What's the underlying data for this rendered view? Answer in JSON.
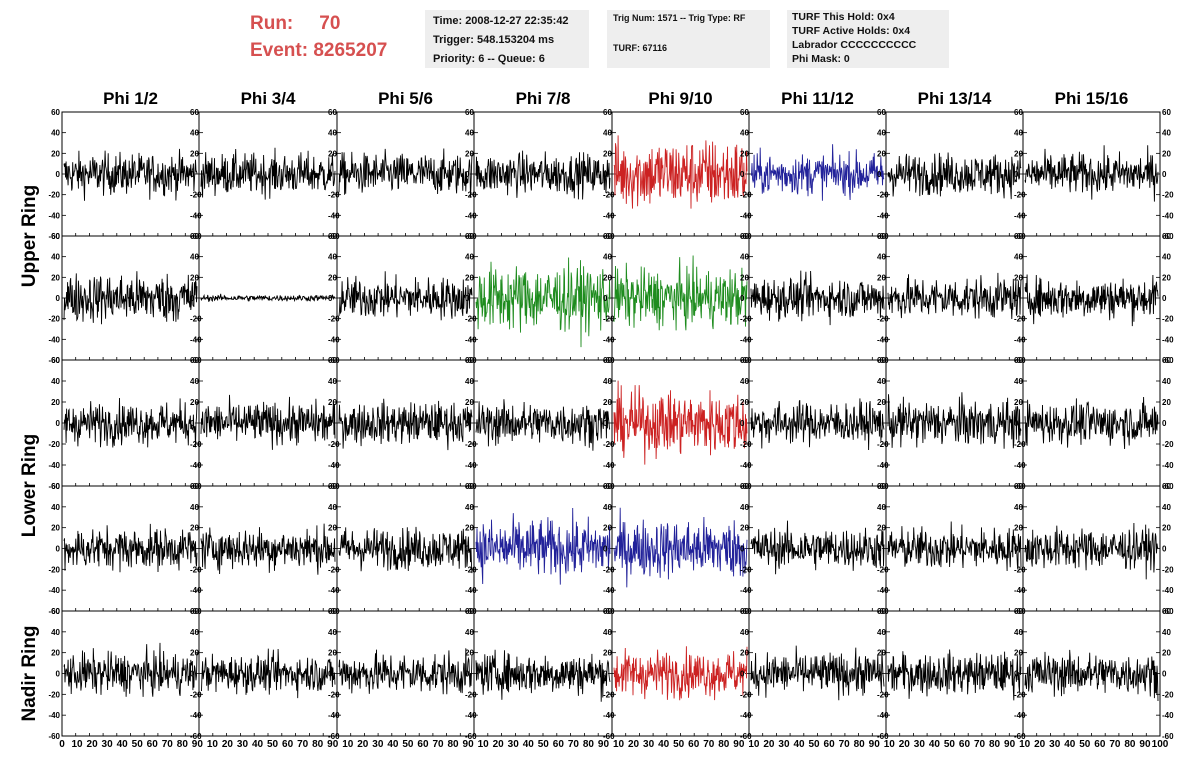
{
  "header": {
    "run_label": "Run:",
    "run_value": "70",
    "event_label": "Event:",
    "event_value": "8265207"
  },
  "info_box_1": {
    "time": "Time: 2008-12-27 22:35:42",
    "trigger": "Trigger: 548.153204 ms",
    "priority": "Priority: 6 -- Queue: 6"
  },
  "info_box_2": {
    "trig": "Trig Num: 1571 -- Trig Type: RF",
    "turf": "TURF: 67116"
  },
  "info_box_3": {
    "this_hold": "TURF This Hold: 0x4",
    "active_holds": "TURF Active Holds: 0x4",
    "labrador": "Labrador CCCCCCCCCC",
    "phi_mask": "Phi Mask: 0"
  },
  "colors": {
    "header_red": "#d65050",
    "trace_black": "#000000",
    "trace_red": "#cc2222",
    "trace_blue": "#22229a",
    "trace_green": "#1e8c1e",
    "info_bg": "#eeeeee"
  },
  "chart_data": {
    "type": "line",
    "column_titles": [
      "Phi 1/2",
      "Phi 3/4",
      "Phi 5/6",
      "Phi 7/8",
      "Phi 9/10",
      "Phi 11/12",
      "Phi 13/14",
      "Phi 15/16"
    ],
    "row_groups": [
      {
        "label": "Upper Ring",
        "rows": [
          0,
          1
        ]
      },
      {
        "label": "Lower Ring",
        "rows": [
          2,
          3
        ]
      },
      {
        "label": "Nadir Ring",
        "rows": [
          4
        ]
      }
    ],
    "ylim": [
      -60,
      60
    ],
    "y_ticks": [
      -60,
      -40,
      -20,
      0,
      20,
      40,
      60
    ],
    "xlim": [
      0,
      100
    ],
    "x_tick_labels": [
      "0",
      "10",
      "20",
      "30",
      "40",
      "50",
      "60",
      "70",
      "80",
      "90",
      "10",
      "20",
      "30",
      "40",
      "50",
      "60",
      "70",
      "80",
      "90",
      "10",
      "20",
      "30",
      "40",
      "50",
      "60",
      "70",
      "80",
      "90",
      "10",
      "20",
      "30",
      "40",
      "50",
      "60",
      "70",
      "80",
      "90",
      "10",
      "20",
      "30",
      "40",
      "50",
      "60",
      "70",
      "80",
      "90",
      "10",
      "20",
      "30",
      "40",
      "50",
      "60",
      "70",
      "80",
      "90",
      "10",
      "20",
      "30",
      "40",
      "50",
      "60",
      "70",
      "80",
      "90",
      "10",
      "20",
      "30",
      "40",
      "50",
      "60",
      "70",
      "80",
      "90",
      "100"
    ],
    "num_samples": 260,
    "trace_colors": [
      [
        "black",
        "black",
        "black",
        "black",
        "red",
        "blue",
        "black",
        "black"
      ],
      [
        "black",
        "black",
        "black",
        "green",
        "green",
        "black",
        "black",
        "black"
      ],
      [
        "black",
        "black",
        "black",
        "black",
        "red",
        "black",
        "black",
        "black"
      ],
      [
        "black",
        "black",
        "black",
        "blue",
        "blue",
        "black",
        "black",
        "black"
      ],
      [
        "black",
        "black",
        "black",
        "black",
        "red",
        "black",
        "black",
        "black"
      ]
    ],
    "trace_amplitude_rms": [
      [
        10,
        10,
        10,
        10,
        17,
        10,
        10,
        10
      ],
      [
        12,
        1.5,
        10,
        16,
        14,
        10,
        10,
        10
      ],
      [
        10,
        10,
        10,
        10,
        15,
        10,
        11,
        10
      ],
      [
        10,
        10,
        10,
        14,
        14,
        10,
        10,
        10
      ],
      [
        10,
        9,
        10,
        10,
        11,
        10,
        10,
        10
      ]
    ]
  }
}
